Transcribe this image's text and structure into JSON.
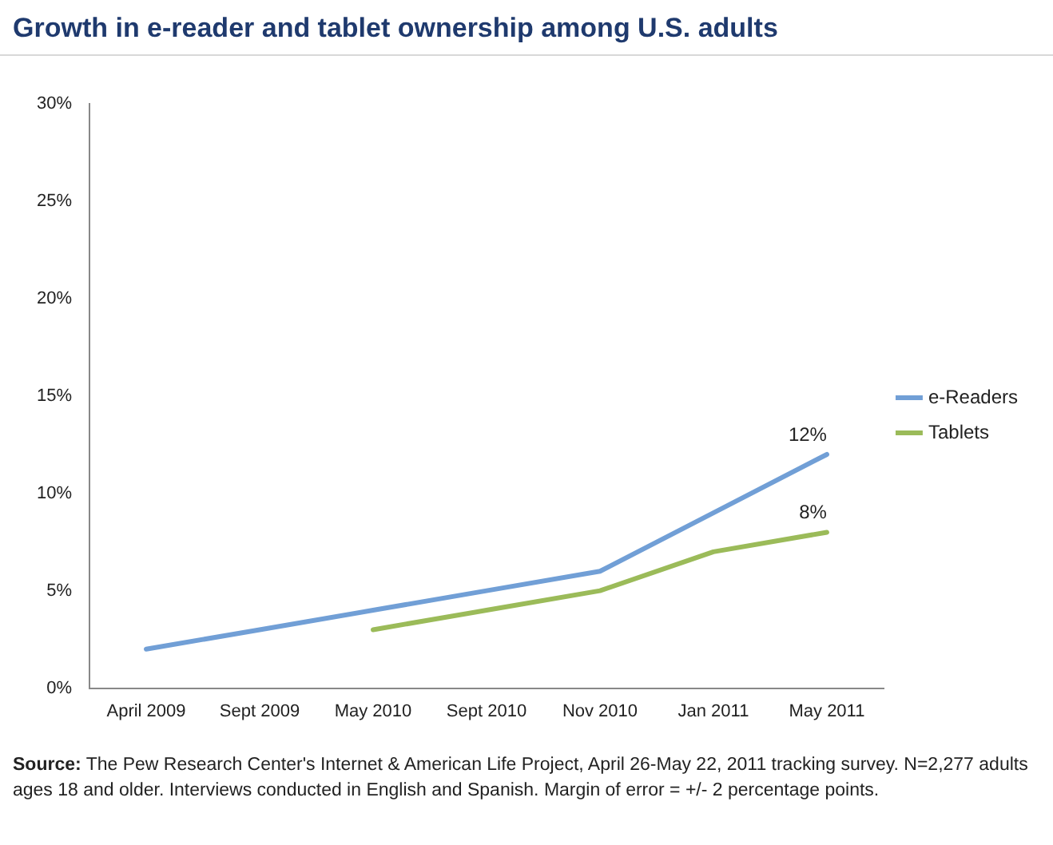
{
  "chart_data": {
    "type": "line",
    "title": "Growth in e-reader and tablet ownership among U.S. adults",
    "categories": [
      "April 2009",
      "Sept 2009",
      "May 2010",
      "Sept 2010",
      "Nov 2010",
      "Jan 2011",
      "May 2011"
    ],
    "series": [
      {
        "name": "e-Readers",
        "color": "#719fd6",
        "values": [
          2,
          3,
          4,
          5,
          6,
          9,
          12
        ],
        "value_labels": [
          null,
          null,
          null,
          null,
          null,
          null,
          "12%"
        ]
      },
      {
        "name": "Tablets",
        "color": "#9bbb59",
        "values": [
          null,
          null,
          3,
          4,
          5,
          7,
          8
        ],
        "value_labels": [
          null,
          null,
          null,
          null,
          null,
          null,
          "8%"
        ]
      }
    ],
    "ylim": [
      0,
      30
    ],
    "yticks": [
      {
        "value": 0,
        "label": "0%"
      },
      {
        "value": 5,
        "label": "5%"
      },
      {
        "value": 10,
        "label": "10%"
      },
      {
        "value": 15,
        "label": "15%"
      },
      {
        "value": 20,
        "label": "20%"
      },
      {
        "value": 25,
        "label": "25%"
      },
      {
        "value": 30,
        "label": "30%"
      }
    ],
    "grid": false,
    "legend": "right",
    "marker": "none",
    "line_style": "solid",
    "annotations": [
      "Source: The Pew Research Center's Internet & American Life Project, April 26-May 22, 2011 tracking survey. N=2,277 adults ages 18 and older. Interviews conducted in English and Spanish. Margin of error = +/- 2 percentage points."
    ]
  }
}
